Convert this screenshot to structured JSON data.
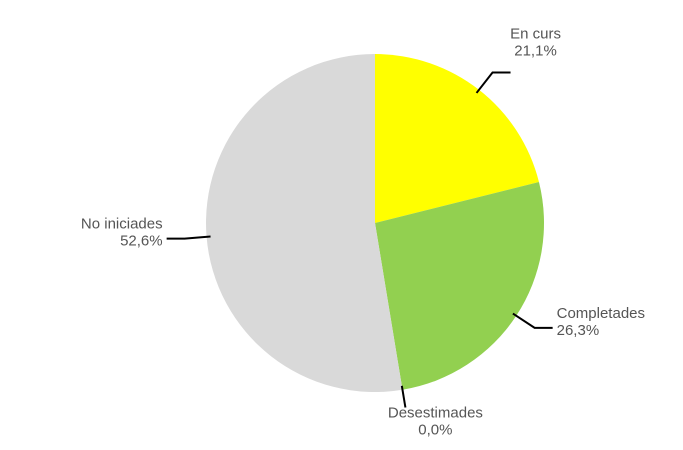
{
  "chart_data": {
    "type": "pie",
    "categories": [
      "En curs",
      "Completades",
      "Desestimades",
      "No iniciades"
    ],
    "values": [
      21.1,
      26.3,
      0.0,
      52.6
    ],
    "value_labels": [
      "21,1%",
      "26,3%",
      "0,0%",
      "52,6%"
    ],
    "colors": [
      "#ffff00",
      "#92d050",
      "#ff9900",
      "#d9d9d9"
    ]
  }
}
